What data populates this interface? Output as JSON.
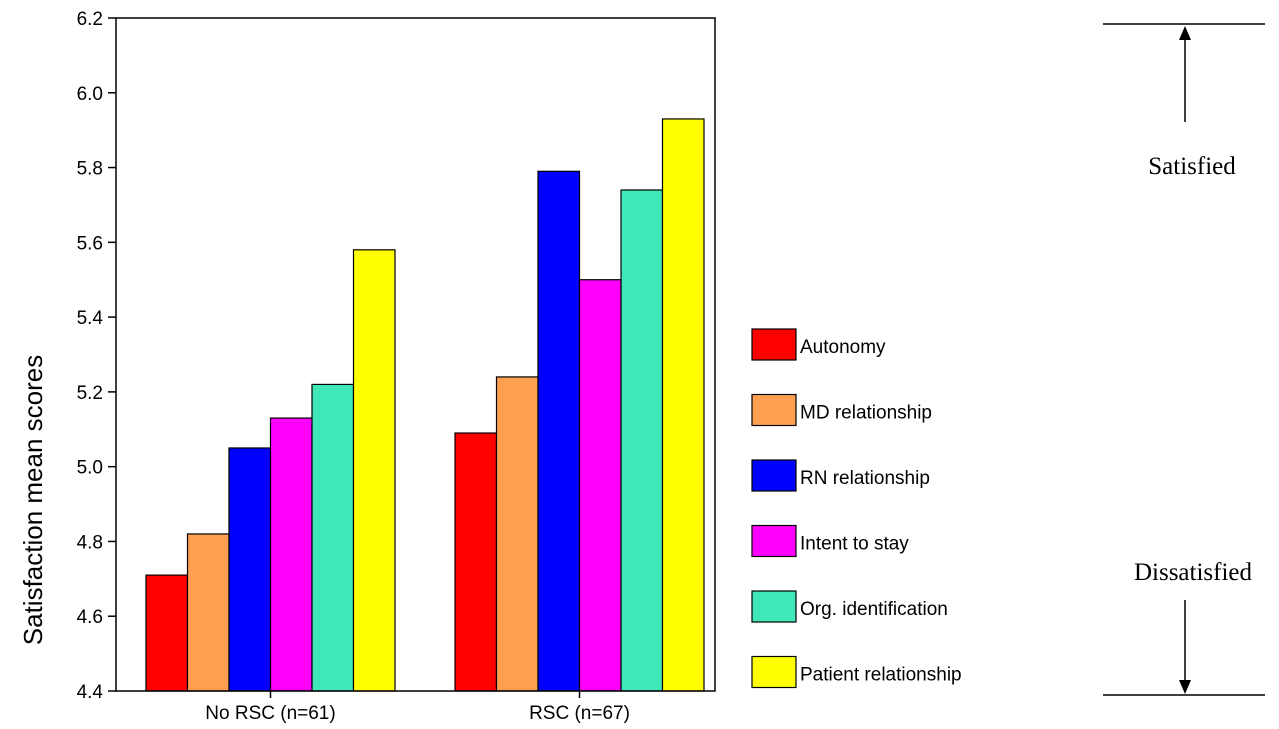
{
  "chart_data": {
    "type": "bar",
    "ylabel": "Satisfaction mean scores",
    "ylim": [
      4.4,
      6.2
    ],
    "yticks": [
      "4.4",
      "4.6",
      "4.8",
      "5.0",
      "5.2",
      "5.4",
      "5.6",
      "5.8",
      "6.0",
      "6.2"
    ],
    "categories": [
      "No RSC (n=61)",
      "RSC (n=67)"
    ],
    "series": [
      {
        "name": "Autonomy",
        "color": "#ff0000",
        "values": [
          4.71,
          5.09
        ]
      },
      {
        "name": "MD relationship",
        "color": "#ffa050",
        "values": [
          4.82,
          5.24
        ]
      },
      {
        "name": "RN relationship",
        "color": "#0000ff",
        "values": [
          5.05,
          5.79
        ]
      },
      {
        "name": "Intent to stay",
        "color": "#ff00ff",
        "values": [
          5.13,
          5.5
        ]
      },
      {
        "name": "Org. identification",
        "color": "#40e8b8",
        "values": [
          5.22,
          5.74
        ]
      },
      {
        "name": "Patient relationship",
        "color": "#ffff00",
        "values": [
          5.58,
          5.93
        ]
      }
    ],
    "legend_position": "right",
    "grid": false
  },
  "annotations": {
    "satisfied": "Satisfied",
    "dissatisfied": "Dissatisfied"
  }
}
